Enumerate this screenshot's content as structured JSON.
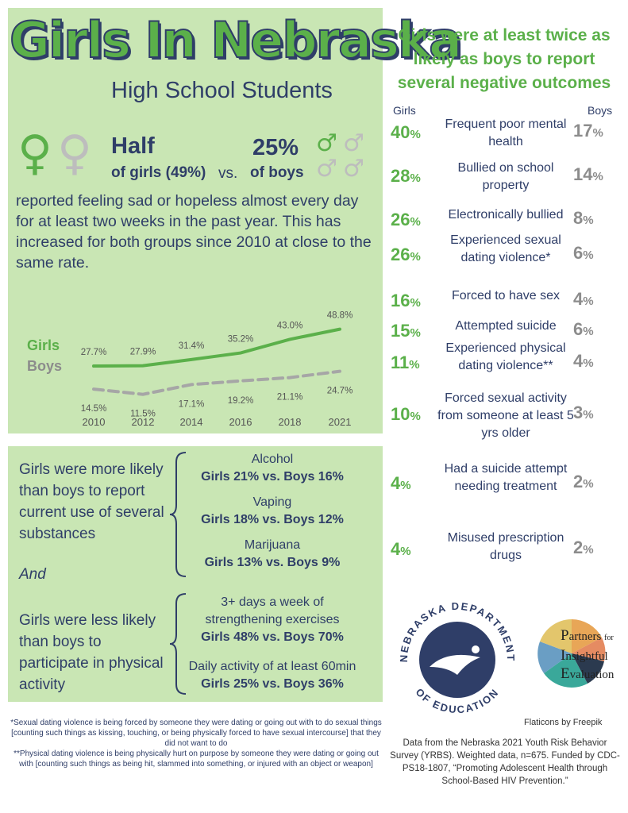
{
  "title": "Girls In Nebraska",
  "subtitle": "High School Students",
  "headline": {
    "half": "Half",
    "girls": "of girls (49%)",
    "vs": "vs.",
    "pct": "25%",
    "boys": "of boys",
    "body": "reported feeling sad or hopeless almost every day for at least two weeks in the past year.  This has increased for both groups since 2010 at close to the same rate."
  },
  "colors": {
    "green": "#5bb04a",
    "navy": "#2f3e68",
    "gray": "#9a9a9a",
    "panel": "#c9e6b4"
  },
  "chart_data": {
    "type": "line",
    "x": [
      "2010",
      "2012",
      "2014",
      "2016",
      "2018",
      "2021"
    ],
    "series": [
      {
        "name": "Girls",
        "values": [
          27.7,
          27.9,
          31.4,
          35.2,
          43.0,
          48.8
        ],
        "labels": [
          "27.7%",
          "27.9%",
          "31.4%",
          "35.2%",
          "43.0%",
          "48.8%"
        ]
      },
      {
        "name": "Boys",
        "values": [
          14.5,
          11.5,
          17.1,
          19.2,
          21.1,
          24.7
        ],
        "labels": [
          "14.5%",
          "11.5%",
          "17.1%",
          "19.2%",
          "21.1%",
          "24.7%"
        ]
      }
    ],
    "title": "",
    "xlabel": "",
    "ylabel": "",
    "grid": false,
    "legend": "left"
  },
  "right": {
    "heading": "Girls were at least twice as likely as boys to report several negative outcomes",
    "girls_head": "Girls",
    "boys_head": "Boys",
    "rows": [
      {
        "girls": "40",
        "label": "Frequent poor mental health",
        "boys": "17"
      },
      {
        "girls": "28",
        "label": "Bullied on school property",
        "boys": "14"
      },
      {
        "girls": "26",
        "label": "Electronically bullied",
        "boys": "8"
      },
      {
        "girls": "26",
        "label": "Experienced sexual dating violence*",
        "boys": "6"
      },
      {
        "girls": "16",
        "label": "Forced to have sex",
        "boys": "4"
      },
      {
        "girls": "15",
        "label": "Attempted suicide",
        "boys": "6"
      },
      {
        "girls": "11",
        "label": "Experienced physical dating violence**",
        "boys": "4"
      },
      {
        "girls": "10",
        "label": "Forced sexual activity from someone at least 5 yrs older",
        "boys": "3"
      },
      {
        "girls": "4",
        "label": "Had a suicide attempt needing treatment",
        "boys": "2"
      },
      {
        "girls": "4",
        "label": "Misused prescription drugs",
        "boys": "2"
      }
    ],
    "pct": "%"
  },
  "substances": {
    "intro": "Girls were more likely than boys to report current use of several substances",
    "items": [
      {
        "name": "Alcohol",
        "value": "Girls 21% vs. Boys 16%"
      },
      {
        "name": "Vaping",
        "value": "Girls 18% vs. Boys 12%"
      },
      {
        "name": "Marijuana",
        "value": "Girls 13% vs. Boys 9%"
      }
    ]
  },
  "and": "And",
  "activity": {
    "intro": "Girls were less likely than boys to participate in physical activity",
    "items": [
      {
        "name": "3+ days a week of strengthening exercises",
        "value": "Girls 48% vs. Boys 70%"
      },
      {
        "name": "Daily activity of at least 60min",
        "value": "Girls 25% vs. Boys 36%"
      }
    ]
  },
  "footnotes": {
    "sexual": "*Sexual dating violence is being forced by someone they were dating or going out with to do sexual things [counting such things as kissing, touching, or being physically forced to have sexual intercourse] that they did not want to do",
    "physical": "**Physical dating violence is being physically hurt on purpose by someone they were dating or going out with [counting such things as being hit, slammed into something, or injured with an object or weapon]"
  },
  "credits": "Flaticons by Freepik",
  "source": "Data from the Nebraska 2021 Youth Risk Behavior Survey (YRBS). Weighted data, n=675. Funded by CDC-PS18-1807, “Promoting Adolescent Health through School-Based HIV Prevention.”",
  "logos": {
    "ne_dept_top": "NEBRASKA DEPARTMENT",
    "ne_dept_bottom": "OF EDUCATION",
    "partners": [
      "P",
      "artners",
      "for",
      "I",
      "nsightful",
      "E",
      "valuation"
    ]
  },
  "icons": {
    "female": "female-symbol-icon",
    "male": "male-symbol-icon"
  }
}
